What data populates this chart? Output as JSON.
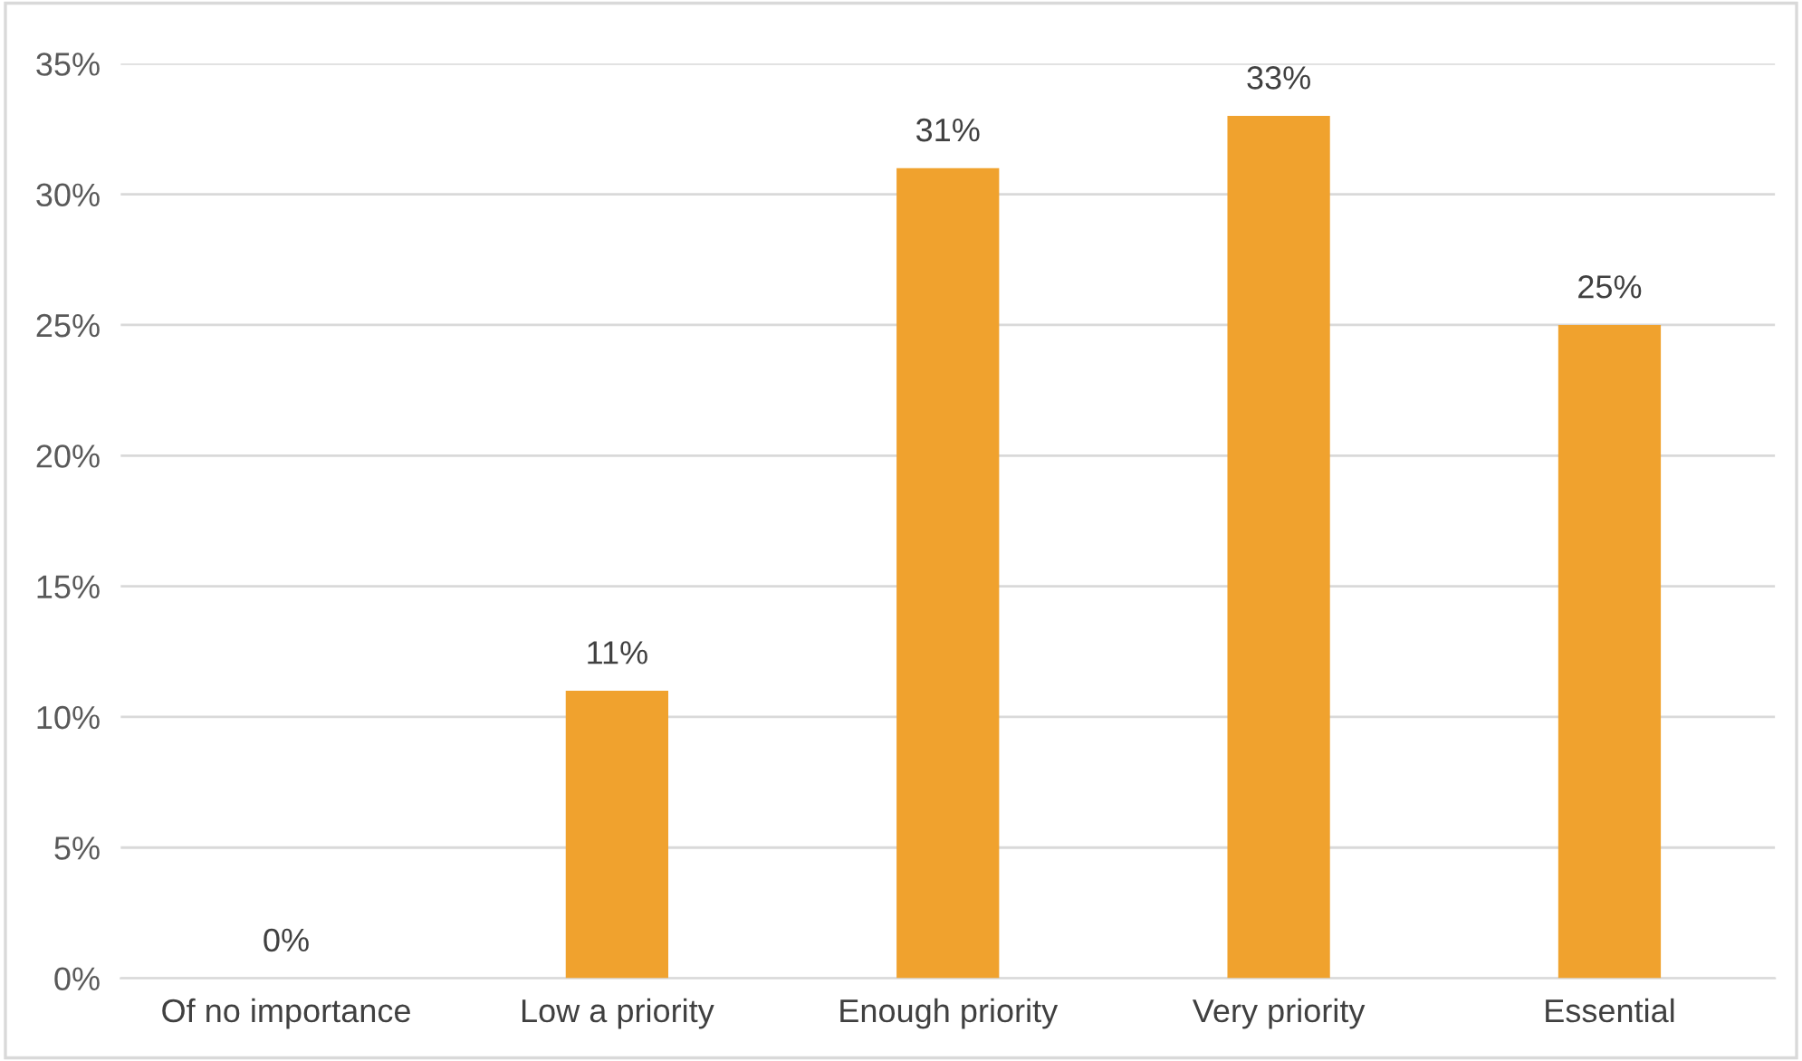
{
  "chart_data": {
    "type": "bar",
    "categories": [
      "Of no importance",
      "Low a priority",
      "Enough priority",
      "Very priority",
      "Essential"
    ],
    "values": [
      0,
      11,
      31,
      33,
      25
    ],
    "value_labels": [
      "0%",
      "11%",
      "31%",
      "33%",
      "25%"
    ],
    "color": "#f0a22e",
    "ylim": [
      0,
      35
    ],
    "yticks": [
      {
        "value": 0,
        "label": "0%"
      },
      {
        "value": 5,
        "label": "5%"
      },
      {
        "value": 10,
        "label": "10%"
      },
      {
        "value": 15,
        "label": "15%"
      },
      {
        "value": 20,
        "label": "20%"
      },
      {
        "value": 25,
        "label": "25%"
      },
      {
        "value": 30,
        "label": "30%"
      },
      {
        "value": 35,
        "label": "35%"
      }
    ],
    "grid": "y"
  }
}
